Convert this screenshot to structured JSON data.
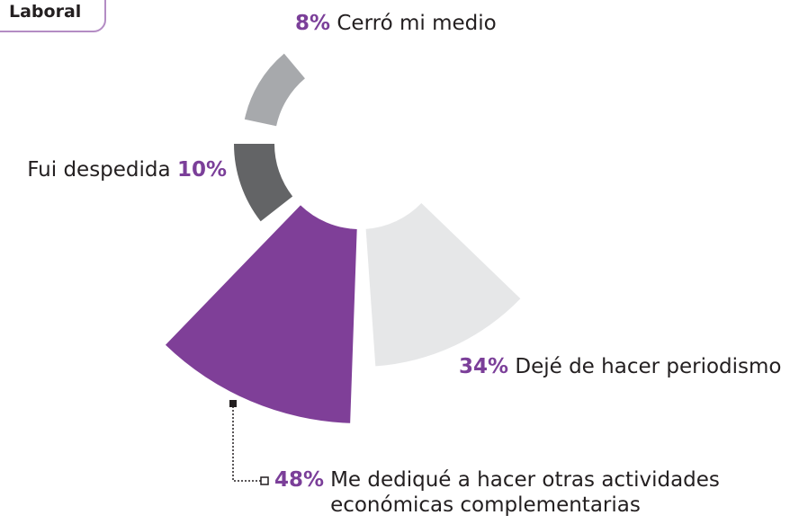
{
  "chart_data": {
    "type": "rose",
    "title": "Laboral",
    "categories": [
      "Cerró mi medio",
      "Fui despedida",
      "Me dediqué a hacer otras actividades económicas complementarias",
      "Dejé de hacer periodismo"
    ],
    "values": [
      8,
      10,
      48,
      34
    ],
    "value_labels": [
      "8%",
      "10%",
      "48%",
      "34%"
    ],
    "colors": [
      "#a7a9ac",
      "#636466",
      "#7f3f98",
      "#e6e7e8"
    ],
    "label_color": "#7b3f99"
  }
}
